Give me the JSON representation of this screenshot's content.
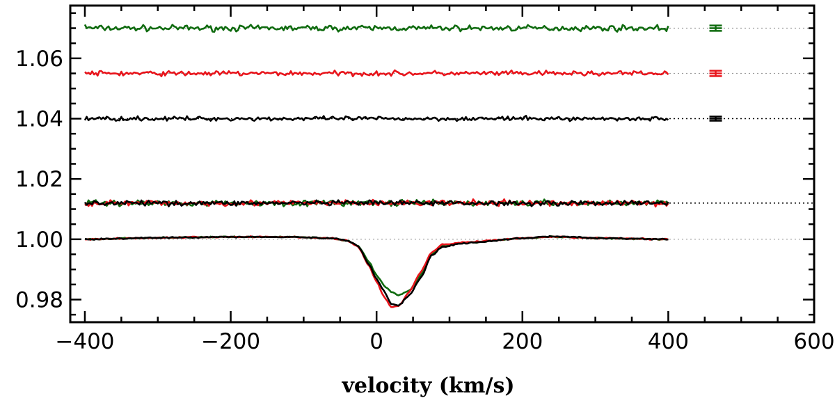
{
  "chart_data": {
    "type": "line",
    "title": "",
    "xlabel": "velocity (km/s)",
    "ylabel": "",
    "xlim": [
      -420,
      600
    ],
    "ylim": [
      0.9725,
      1.0775
    ],
    "x_ticks": [
      -400,
      -200,
      0,
      200,
      400,
      600
    ],
    "x_tick_labels": [
      "−400",
      "−200",
      "0",
      "200",
      "400",
      "600"
    ],
    "y_ticks": [
      0.98,
      1.0,
      1.02,
      1.04,
      1.06
    ],
    "y_tick_labels": [
      "0.98",
      "1.00",
      "1.02",
      "1.04",
      "1.06"
    ],
    "grid": false,
    "legend": "none",
    "reference_lines": [
      {
        "y": 1.07,
        "color": "#999999",
        "style": "dotted"
      },
      {
        "y": 1.055,
        "color": "#999999",
        "style": "dotted"
      },
      {
        "y": 1.04,
        "color": "#000000",
        "style": "dotted"
      },
      {
        "y": 1.012,
        "color": "#000000",
        "style": "dotted"
      },
      {
        "y": 1.0,
        "color": "#999999",
        "style": "dotted"
      }
    ],
    "error_bars": [
      {
        "x": 465,
        "y": 1.07,
        "half_height": 0.0009,
        "color": "#0f6b0f"
      },
      {
        "x": 465,
        "y": 1.055,
        "half_height": 0.0009,
        "color": "#e8141b"
      },
      {
        "x": 465,
        "y": 1.04,
        "half_height": 0.0007,
        "color": "#000000"
      }
    ],
    "x_range": [
      -400,
      400
    ],
    "noise_traces": [
      {
        "offset": 1.07,
        "amplitude": 0.0008,
        "color": "#0f6b0f",
        "start": 1.0712
      },
      {
        "offset": 1.055,
        "amplitude": 0.0007,
        "color": "#e8141b",
        "start": 1.0555
      },
      {
        "offset": 1.04,
        "amplitude": 0.0006,
        "color": "#000000",
        "start": 1.0395
      },
      {
        "offset": 1.012,
        "amplitude": 0.0008,
        "color": "#0f6b0f"
      },
      {
        "offset": 1.012,
        "amplitude": 0.0008,
        "color": "#e8141b"
      },
      {
        "offset": 1.012,
        "amplitude": 0.0007,
        "color": "#000000"
      }
    ],
    "profile_series": [
      {
        "color": "#0f6b0f",
        "points": [
          [
            -400,
            1.0
          ],
          [
            -300,
            1.0005
          ],
          [
            -200,
            1.0008
          ],
          [
            -120,
            1.0008
          ],
          [
            -60,
            1.0003
          ],
          [
            -40,
            0.9995
          ],
          [
            -25,
            0.9978
          ],
          [
            -10,
            0.9925
          ],
          [
            0,
            0.988
          ],
          [
            10,
            0.9848
          ],
          [
            20,
            0.9825
          ],
          [
            30,
            0.9815
          ],
          [
            45,
            0.983
          ],
          [
            60,
            0.988
          ],
          [
            75,
            0.995
          ],
          [
            90,
            0.9978
          ],
          [
            120,
            0.9988
          ],
          [
            200,
            1.0003
          ],
          [
            240,
            1.0008
          ],
          [
            300,
            1.0004
          ],
          [
            400,
            1.0
          ]
        ]
      },
      {
        "color": "#e8141b",
        "points": [
          [
            -400,
            1.0
          ],
          [
            -300,
            1.0005
          ],
          [
            -200,
            1.0008
          ],
          [
            -120,
            1.0008
          ],
          [
            -60,
            1.0003
          ],
          [
            -40,
            0.9995
          ],
          [
            -25,
            0.9975
          ],
          [
            -10,
            0.991
          ],
          [
            0,
            0.986
          ],
          [
            10,
            0.981
          ],
          [
            20,
            0.9775
          ],
          [
            30,
            0.9778
          ],
          [
            45,
            0.9825
          ],
          [
            60,
            0.989
          ],
          [
            75,
            0.9955
          ],
          [
            90,
            0.9982
          ],
          [
            120,
            0.999
          ],
          [
            200,
            1.0003
          ],
          [
            240,
            1.0008
          ],
          [
            300,
            1.0004
          ],
          [
            400,
            1.0
          ]
        ]
      },
      {
        "color": "#000000",
        "points": [
          [
            -400,
            1.0
          ],
          [
            -300,
            1.0005
          ],
          [
            -200,
            1.0008
          ],
          [
            -120,
            1.0008
          ],
          [
            -60,
            1.0003
          ],
          [
            -40,
            0.9995
          ],
          [
            -25,
            0.9978
          ],
          [
            -10,
            0.9915
          ],
          [
            0,
            0.9868
          ],
          [
            10,
            0.983
          ],
          [
            20,
            0.9785
          ],
          [
            30,
            0.978
          ],
          [
            45,
            0.9815
          ],
          [
            60,
            0.987
          ],
          [
            75,
            0.9945
          ],
          [
            90,
            0.9975
          ],
          [
            120,
            0.9987
          ],
          [
            200,
            1.0003
          ],
          [
            240,
            1.001
          ],
          [
            300,
            1.0004
          ],
          [
            400,
            1.0
          ]
        ]
      }
    ]
  }
}
